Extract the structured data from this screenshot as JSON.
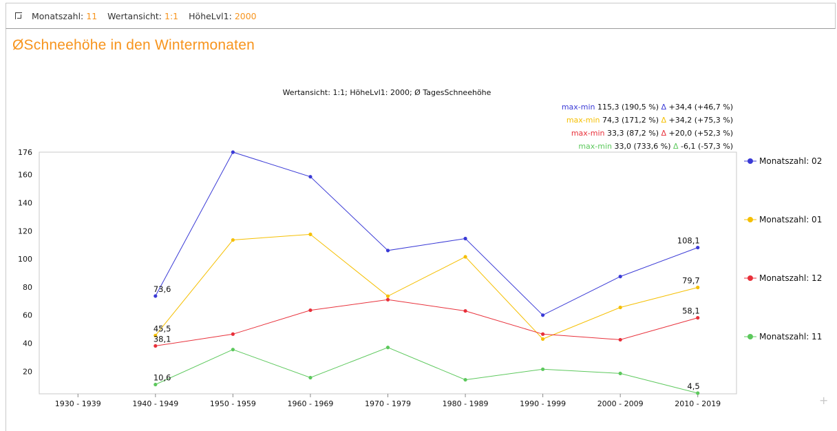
{
  "filters": [
    {
      "label": "Monatszahl:",
      "value": "11"
    },
    {
      "label": "Wertansicht:",
      "value": "1:1"
    },
    {
      "label": "HöheLvl1:",
      "value": "2000"
    }
  ],
  "page_title": "ØSchneehöhe in den Wintermonaten",
  "colors": {
    "accent": "#f7941d",
    "series": [
      "#3a3ad6",
      "#f5bf00",
      "#e8303a",
      "#5cc85c"
    ]
  },
  "chart_data": {
    "type": "line",
    "title": "Wertansicht: 1:1; HöheLvl1: 2000; Ø TagesSchneehöhe",
    "categories": [
      "1930 - 1939",
      "1940 - 1949",
      "1950 - 1959",
      "1960 - 1969",
      "1970 - 1979",
      "1980 - 1989",
      "1990 - 1999",
      "2000 - 2009",
      "2010 - 2019"
    ],
    "yticks": [
      20,
      40,
      60,
      80,
      100,
      120,
      140,
      160,
      176
    ],
    "ylim": [
      4,
      176
    ],
    "grid": false,
    "legend_position": "right",
    "series": [
      {
        "name": "Monatszahl: 02",
        "values": [
          null,
          73.6,
          176,
          158.5,
          106,
          114.5,
          60,
          87.5,
          108.1
        ],
        "labels": [
          {
            "index": 1,
            "text": "73,6"
          },
          {
            "index": 8,
            "text": "108,1"
          }
        ],
        "stats": {
          "range_label": "max-min",
          "range_text": "115,3 (190,5 %)",
          "delta_symbol": "Δ",
          "delta_text": "+34,4 (+46,7 %)"
        }
      },
      {
        "name": "Monatszahl: 01",
        "values": [
          null,
          45.5,
          113.5,
          117.5,
          73.5,
          101.5,
          43,
          65.5,
          79.7
        ],
        "labels": [
          {
            "index": 1,
            "text": "45,5"
          },
          {
            "index": 8,
            "text": "79,7"
          }
        ],
        "stats": {
          "range_label": "max-min",
          "range_text": "74,3 (171,2 %)",
          "delta_symbol": "Δ",
          "delta_text": "+34,2 (+75,3 %)"
        }
      },
      {
        "name": "Monatszahl: 12",
        "values": [
          null,
          38.1,
          46.5,
          63.5,
          71,
          63,
          46.5,
          42.5,
          58.1
        ],
        "labels": [
          {
            "index": 1,
            "text": "38,1"
          },
          {
            "index": 8,
            "text": "58,1"
          }
        ],
        "stats": {
          "range_label": "max-min",
          "range_text": "33,3 (87,2 %)",
          "delta_symbol": "Δ",
          "delta_text": "+20,0 (+52,3 %)"
        }
      },
      {
        "name": "Monatszahl: 11",
        "values": [
          null,
          10.6,
          35.5,
          15.5,
          37,
          14,
          21.5,
          18.5,
          4.5
        ],
        "labels": [
          {
            "index": 1,
            "text": "10,6"
          },
          {
            "index": 8,
            "text": "4,5"
          }
        ],
        "stats": {
          "range_label": "max-min",
          "range_text": "33,0 (733,6 %)",
          "delta_symbol": "Δ",
          "delta_text": "-6,1 (-57,3 %)"
        }
      }
    ]
  }
}
